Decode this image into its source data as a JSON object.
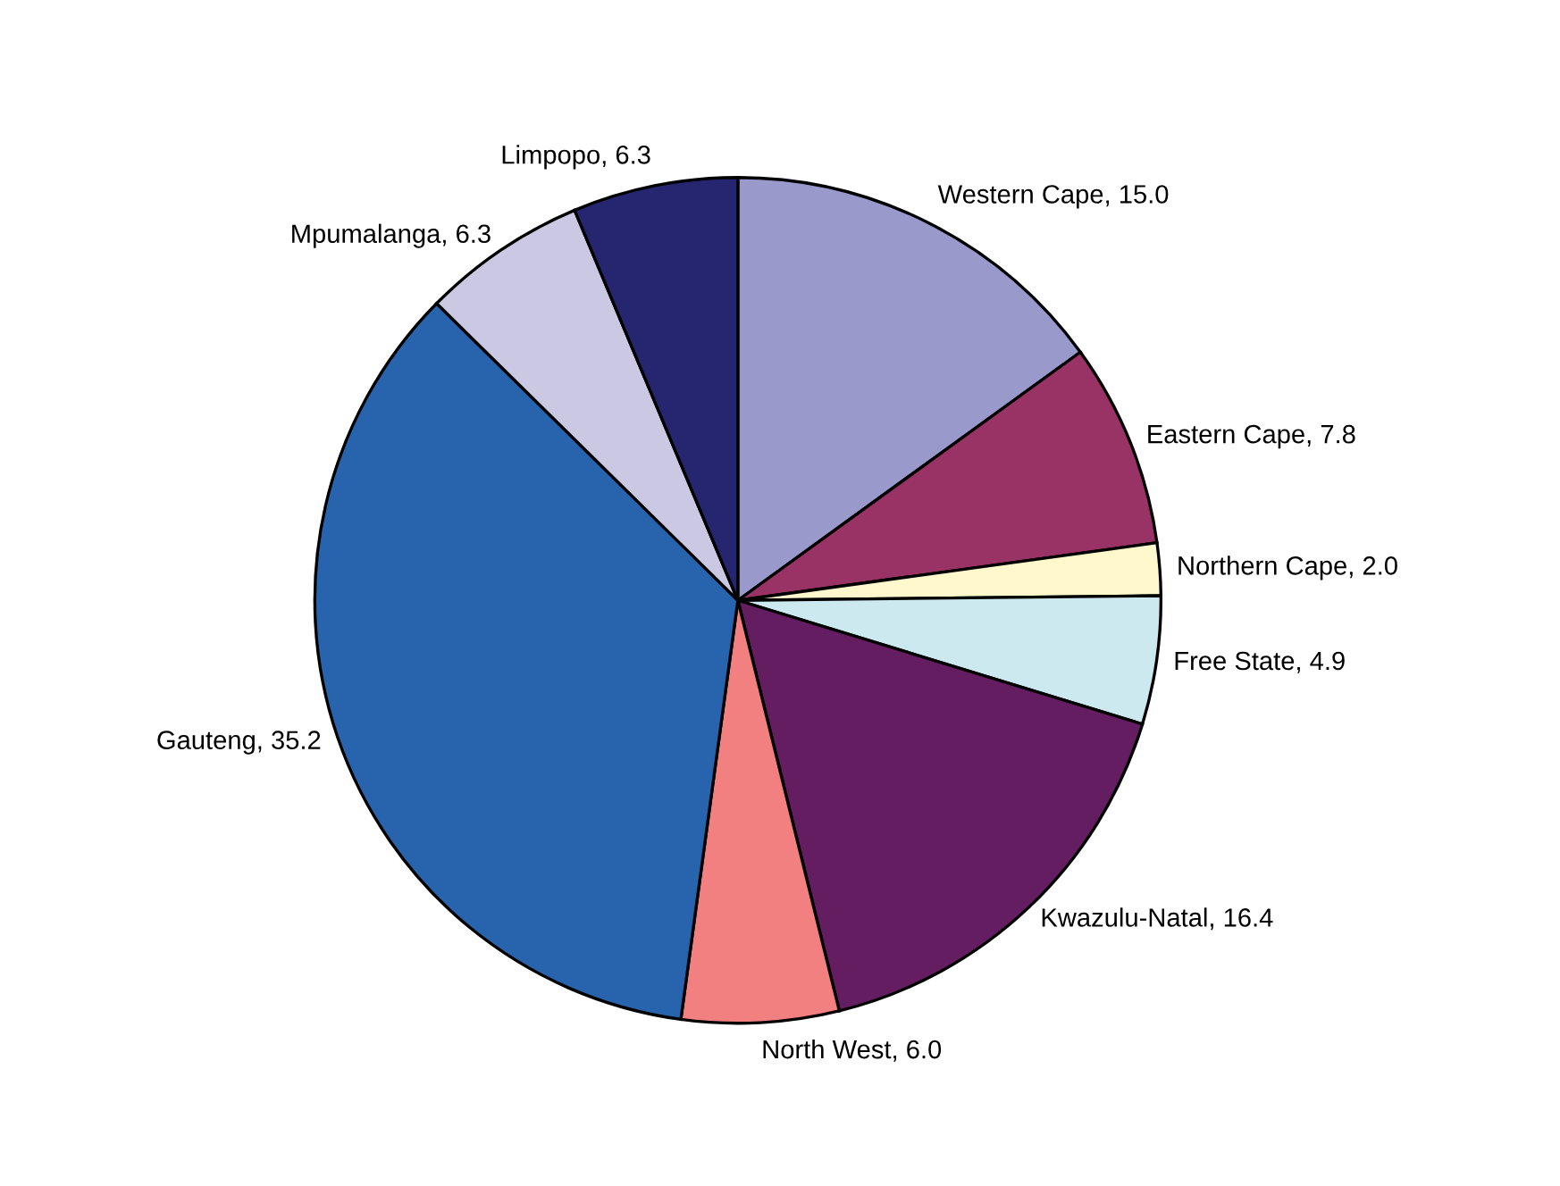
{
  "chart_data": {
    "type": "pie",
    "categories": [
      "Western Cape",
      "Eastern Cape",
      "Northern Cape",
      "Free State",
      "Kwazulu-Natal",
      "North West",
      "Gauteng",
      "Mpumalanga",
      "Limpopo"
    ],
    "values": [
      15.0,
      7.8,
      2.0,
      4.9,
      16.4,
      6.0,
      35.2,
      6.3,
      6.3
    ],
    "colors": [
      "#9999cc",
      "#993366",
      "#fff8cc",
      "#cce9ef",
      "#631d60",
      "#f28080",
      "#2864ae",
      "#cbc8e4",
      "#262670"
    ],
    "value_labels": [
      ", 15.0",
      ", 7.8",
      ", 2.0",
      ", 4.9",
      ", 16.4",
      ", 6.0",
      ", 35.2",
      ", 6.3",
      ", 6.3"
    ],
    "legend": false
  }
}
